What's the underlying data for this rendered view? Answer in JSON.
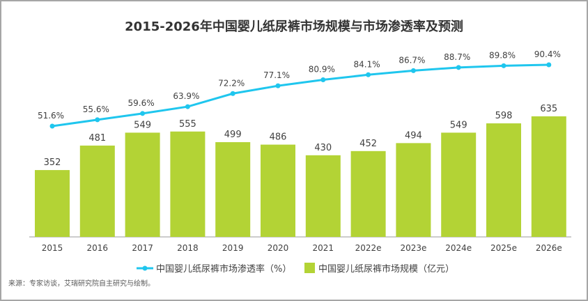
{
  "chart_data": {
    "type": "bar+line",
    "title": "2015-2026年中国婴儿纸尿裤市场规模与市场渗透率及预测",
    "categories": [
      "2015",
      "2016",
      "2017",
      "2018",
      "2019",
      "2020",
      "2021",
      "2022e",
      "2023e",
      "2024e",
      "2025e",
      "2026e"
    ],
    "series": [
      {
        "name": "中国婴儿纸尿裤市场规模（亿元）",
        "type": "bar",
        "color": "#b3d335",
        "values": [
          352,
          481,
          549,
          555,
          499,
          486,
          430,
          452,
          494,
          549,
          598,
          635
        ]
      },
      {
        "name": "中国婴儿纸尿裤市场渗透率（%）",
        "type": "line",
        "color": "#1fc6ee",
        "values": [
          51.6,
          55.6,
          59.6,
          63.9,
          72.2,
          77.1,
          80.9,
          84.1,
          86.7,
          88.7,
          89.8,
          90.4
        ],
        "labels": [
          "51.6%",
          "55.6%",
          "59.6%",
          "63.9%",
          "72.2%",
          "77.1%",
          "80.9%",
          "84.1%",
          "86.7%",
          "88.7%",
          "89.8%",
          "90.4%"
        ]
      }
    ],
    "legend": [
      "中国婴儿纸尿裤市场渗透率（%）",
      "中国婴儿纸尿裤市场规模（亿元）"
    ],
    "legend_placement": "bottom",
    "grid": false
  },
  "source": "来源：专家访谈，艾瑞研究院自主研究与绘制。"
}
